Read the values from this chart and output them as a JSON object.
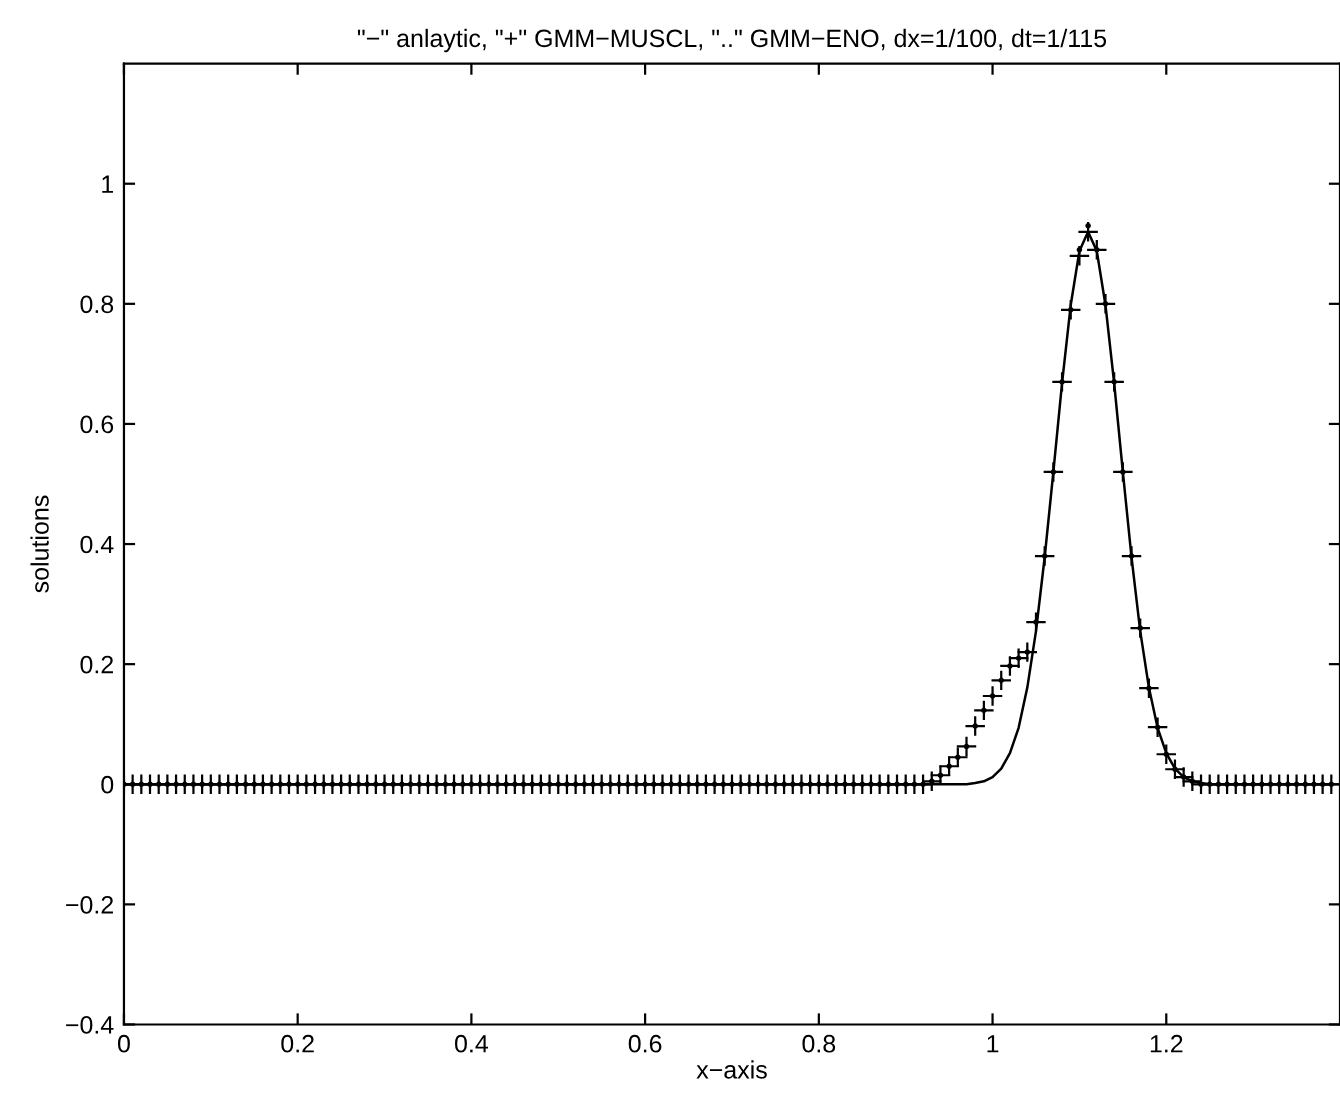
{
  "chart_data": {
    "type": "line",
    "title": "\"−\" anlaytic, \"+\" GMM−MUSCL, \"..\" GMM−ENO, dx=1/100, dt=1/115",
    "xlabel": "x−axis",
    "ylabel": "solutions",
    "x": [
      0,
      0.01,
      0.02,
      0.03,
      0.04,
      0.05,
      0.06,
      0.07,
      0.08,
      0.09,
      0.1,
      0.11,
      0.12,
      0.13,
      0.14,
      0.15,
      0.16,
      0.17,
      0.18,
      0.19,
      0.2,
      0.21,
      0.22,
      0.23,
      0.24,
      0.25,
      0.26,
      0.27,
      0.28,
      0.29,
      0.3,
      0.31,
      0.32,
      0.33,
      0.34,
      0.35,
      0.36,
      0.37,
      0.38,
      0.39,
      0.4,
      0.41,
      0.42,
      0.43,
      0.44,
      0.45,
      0.46,
      0.47,
      0.48,
      0.49,
      0.5,
      0.51,
      0.52,
      0.53,
      0.54,
      0.55,
      0.56,
      0.57,
      0.58,
      0.59,
      0.6,
      0.61,
      0.62,
      0.63,
      0.64,
      0.65,
      0.66,
      0.67,
      0.68,
      0.69,
      0.7,
      0.71,
      0.72,
      0.73,
      0.74,
      0.75,
      0.76,
      0.77,
      0.78,
      0.79,
      0.8,
      0.81,
      0.82,
      0.83,
      0.84,
      0.85,
      0.86,
      0.87,
      0.88,
      0.89,
      0.9,
      0.91,
      0.92,
      0.93,
      0.94,
      0.95,
      0.96,
      0.97,
      0.98,
      0.99,
      1,
      1.01,
      1.02,
      1.03,
      1.04,
      1.05,
      1.06,
      1.07,
      1.08,
      1.09,
      1.1,
      1.11,
      1.12,
      1.13,
      1.14,
      1.15,
      1.16,
      1.17,
      1.18,
      1.19,
      1.2,
      1.21,
      1.22,
      1.23,
      1.24,
      1.25,
      1.26,
      1.27,
      1.28,
      1.29,
      1.3,
      1.31,
      1.32,
      1.33,
      1.34,
      1.35,
      1.36,
      1.37,
      1.38,
      1.39
    ],
    "series": [
      {
        "color": "#000000",
        "marker": "none",
        "line_style": "solid",
        "values": [
          0,
          0,
          0,
          0,
          0,
          0,
          0,
          0,
          0,
          0,
          0,
          0,
          0,
          0,
          0,
          0,
          0,
          0,
          0,
          0,
          0,
          0,
          0,
          0,
          0,
          0,
          0,
          0,
          0,
          0,
          0,
          0,
          0,
          0,
          0,
          0,
          0,
          0,
          0,
          0,
          0,
          0,
          0,
          0,
          0,
          0,
          0,
          0,
          0,
          0,
          0,
          0,
          0,
          0,
          0,
          0,
          0,
          0,
          0,
          0,
          0,
          0,
          0,
          0,
          0,
          0,
          0,
          0,
          0,
          0,
          0,
          0,
          0,
          0,
          0,
          0,
          0,
          0,
          0,
          0,
          0,
          0,
          0,
          0,
          0,
          0,
          0,
          0,
          0,
          0,
          0,
          0,
          0,
          0,
          0,
          0,
          0,
          0,
          0.002,
          0.005,
          0.012,
          0.026,
          0.052,
          0.094,
          0.161,
          0.255,
          0.378,
          0.52,
          0.668,
          0.798,
          0.888,
          0.92,
          0.888,
          0.798,
          0.668,
          0.52,
          0.378,
          0.255,
          0.161,
          0.094,
          0.052,
          0.026,
          0.012,
          0.005,
          0.002,
          0,
          0,
          0,
          0,
          0,
          0,
          0,
          0,
          0,
          0,
          0,
          0,
          0,
          0,
          0
        ]
      },
      {
        "type": "scatter",
        "color": "#000000",
        "marker": "cross",
        "values": [
          0,
          0,
          0,
          0,
          0,
          0,
          0,
          0,
          0,
          0,
          0,
          0,
          0,
          0,
          0,
          0,
          0,
          0,
          0,
          0,
          0,
          0,
          0,
          0,
          0,
          0,
          0,
          0,
          0,
          0,
          0,
          0,
          0,
          0,
          0,
          0,
          0,
          0,
          0,
          0,
          0,
          0,
          0,
          0,
          0,
          0,
          0,
          0,
          0,
          0,
          0,
          0,
          0,
          0,
          0,
          0,
          0,
          0,
          0,
          0,
          0,
          0,
          0,
          0,
          0,
          0,
          0,
          0,
          0,
          0,
          0,
          0,
          0,
          0,
          0,
          0,
          0,
          0,
          0,
          0,
          0,
          0,
          0,
          0,
          0,
          0,
          0,
          0,
          0,
          0,
          0,
          0,
          0,
          0.005,
          0.015,
          0.03,
          0.045,
          0.063,
          0.097,
          0.123,
          0.147,
          0.173,
          0.197,
          0.21,
          0.22,
          0.27,
          0.38,
          0.52,
          0.67,
          0.79,
          0.88,
          0.92,
          0.89,
          0.8,
          0.67,
          0.52,
          0.38,
          0.26,
          0.16,
          0.095,
          0.05,
          0.025,
          0.012,
          0.005,
          0,
          0,
          0,
          0,
          0,
          0,
          0,
          0,
          0,
          0,
          0,
          0,
          0,
          0,
          0,
          0
        ]
      },
      {
        "type": "scatter",
        "color": "#000000",
        "marker": "circle",
        "values": [
          0,
          0,
          0,
          0,
          0,
          0,
          0,
          0,
          0,
          0,
          0,
          0,
          0,
          0,
          0,
          0,
          0,
          0,
          0,
          0,
          0,
          0,
          0,
          0,
          0,
          0,
          0,
          0,
          0,
          0,
          0,
          0,
          0,
          0,
          0,
          0,
          0,
          0,
          0,
          0,
          0,
          0,
          0,
          0,
          0,
          0,
          0,
          0,
          0,
          0,
          0,
          0,
          0,
          0,
          0,
          0,
          0,
          0,
          0,
          0,
          0,
          0,
          0,
          0,
          0,
          0,
          0,
          0,
          0,
          0,
          0,
          0,
          0,
          0,
          0,
          0,
          0,
          0,
          0,
          0,
          0,
          0,
          0,
          0,
          0,
          0,
          0,
          0,
          0,
          0,
          0,
          0,
          0,
          0.005,
          0.015,
          0.03,
          0.045,
          0.063,
          0.097,
          0.123,
          0.147,
          0.173,
          0.197,
          0.21,
          0.22,
          0.27,
          0.38,
          0.52,
          0.67,
          0.79,
          0.89,
          0.93,
          0.89,
          0.8,
          0.67,
          0.52,
          0.38,
          0.26,
          0.16,
          0.095,
          0.05,
          0.025,
          0.012,
          0.005,
          0,
          0,
          0,
          0,
          0,
          0,
          0,
          0,
          0,
          0,
          0,
          0,
          0,
          0,
          0,
          0
        ]
      }
    ],
    "xlim": [
      0,
      1.4
    ],
    "xticks": [
      0,
      0.2,
      0.4,
      0.6,
      0.8,
      1,
      1.2
    ],
    "ylim": [
      -0.4,
      1.2
    ],
    "yticks": [
      -0.4,
      -0.2,
      0,
      0.2,
      0.4,
      0.6,
      0.8,
      1
    ],
    "grid": false
  }
}
